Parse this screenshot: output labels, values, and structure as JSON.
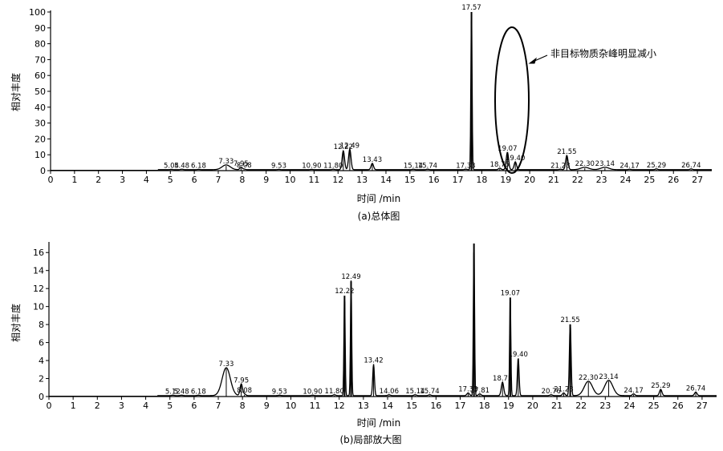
{
  "chart_data": [
    {
      "type": "line",
      "id": "overall",
      "caption": "(a)总体图",
      "xlabel": "时间 /min",
      "ylabel": "相对丰度",
      "xlim": [
        0,
        27.6
      ],
      "ylim": [
        0,
        100
      ],
      "xticks": [
        0,
        1,
        2,
        3,
        4,
        5,
        6,
        7,
        8,
        9,
        10,
        11,
        12,
        13,
        14,
        15,
        16,
        17,
        18,
        19,
        20,
        21,
        22,
        23,
        24,
        25,
        26,
        27
      ],
      "yticks": [
        0,
        10,
        20,
        30,
        40,
        50,
        60,
        70,
        80,
        90,
        100
      ],
      "annotation": "非目标物质杂峰明显减小",
      "peaks": [
        {
          "label": "5.04",
          "x": 5.04,
          "y": 0.2
        },
        {
          "label": "5.48",
          "x": 5.48,
          "y": 0.3
        },
        {
          "label": "6.18",
          "x": 6.18,
          "y": 0.2
        },
        {
          "label": "7.33",
          "x": 7.33,
          "y": 3
        },
        {
          "label": "7.95",
          "x": 7.95,
          "y": 1.5
        },
        {
          "label": "8.08",
          "x": 8.08,
          "y": 0.4
        },
        {
          "label": "9.53",
          "x": 9.53,
          "y": 0.2
        },
        {
          "label": "10.90",
          "x": 10.9,
          "y": 0.2
        },
        {
          "label": "11.80",
          "x": 11.8,
          "y": 0.3
        },
        {
          "label": "12.22",
          "x": 12.22,
          "y": 12
        },
        {
          "label": "12.49",
          "x": 12.49,
          "y": 13
        },
        {
          "label": "13.43",
          "x": 13.43,
          "y": 4
        },
        {
          "label": "15.14",
          "x": 15.14,
          "y": 0.3
        },
        {
          "label": "15.74",
          "x": 15.74,
          "y": 0.3
        },
        {
          "label": "17.33",
          "x": 17.33,
          "y": 0.3
        },
        {
          "label": "17.57",
          "x": 17.57,
          "y": 100
        },
        {
          "label": "18.75",
          "x": 18.75,
          "y": 1
        },
        {
          "label": "19.07",
          "x": 19.07,
          "y": 11
        },
        {
          "label": "19.40",
          "x": 19.4,
          "y": 5
        },
        {
          "label": "21.28",
          "x": 21.28,
          "y": 0.3
        },
        {
          "label": "21.55",
          "x": 21.55,
          "y": 9
        },
        {
          "label": "22.30",
          "x": 22.3,
          "y": 1.5
        },
        {
          "label": "23.14",
          "x": 23.14,
          "y": 1.5
        },
        {
          "label": "24.17",
          "x": 24.17,
          "y": 0.3
        },
        {
          "label": "25.29",
          "x": 25.29,
          "y": 0.5
        },
        {
          "label": "26.74",
          "x": 26.74,
          "y": 0.5
        }
      ]
    },
    {
      "type": "line",
      "id": "zoom",
      "caption": "(b)局部放大图",
      "xlabel": "时间 /min",
      "ylabel": "相对丰度",
      "xlim": [
        0,
        27.6
      ],
      "ylim": [
        0,
        17
      ],
      "xticks": [
        0,
        1,
        2,
        3,
        4,
        5,
        6,
        7,
        8,
        9,
        10,
        11,
        12,
        13,
        14,
        15,
        16,
        17,
        18,
        19,
        20,
        21,
        22,
        23,
        24,
        25,
        26,
        27
      ],
      "yticks": [
        0,
        2,
        4,
        6,
        8,
        10,
        12,
        14,
        16
      ],
      "peaks": [
        {
          "label": "5.12",
          "x": 5.12,
          "y": 0.05
        },
        {
          "label": "5.48",
          "x": 5.48,
          "y": 0.05
        },
        {
          "label": "6.18",
          "x": 6.18,
          "y": 0.05
        },
        {
          "label": "7.33",
          "x": 7.33,
          "y": 3.1
        },
        {
          "label": "7.95",
          "x": 7.95,
          "y": 1.3
        },
        {
          "label": "8.08",
          "x": 8.08,
          "y": 0.2
        },
        {
          "label": "9.53",
          "x": 9.53,
          "y": 0.05
        },
        {
          "label": "10.90",
          "x": 10.9,
          "y": 0.05
        },
        {
          "label": "11.80",
          "x": 11.8,
          "y": 0.1
        },
        {
          "label": "12.22",
          "x": 12.22,
          "y": 11.2
        },
        {
          "label": "12.49",
          "x": 12.49,
          "y": 12.8
        },
        {
          "label": "13.42",
          "x": 13.42,
          "y": 3.5
        },
        {
          "label": "14.06",
          "x": 14.06,
          "y": 0.1
        },
        {
          "label": "15.14",
          "x": 15.14,
          "y": 0.1
        },
        {
          "label": "15.74",
          "x": 15.74,
          "y": 0.1
        },
        {
          "label": "17.33",
          "x": 17.33,
          "y": 0.3
        },
        {
          "label": "",
          "x": 17.57,
          "y": 17
        },
        {
          "label": "17.81",
          "x": 17.81,
          "y": 0.2
        },
        {
          "label": "18.75",
          "x": 18.75,
          "y": 1.5
        },
        {
          "label": "19.07",
          "x": 19.07,
          "y": 11
        },
        {
          "label": "19.40",
          "x": 19.4,
          "y": 4.2
        },
        {
          "label": "20.76",
          "x": 20.76,
          "y": 0.1
        },
        {
          "label": "21.28",
          "x": 21.28,
          "y": 0.3
        },
        {
          "label": "21.55",
          "x": 21.55,
          "y": 8
        },
        {
          "label": "22.30",
          "x": 22.3,
          "y": 1.6
        },
        {
          "label": "23.14",
          "x": 23.14,
          "y": 1.7
        },
        {
          "label": "24.17",
          "x": 24.17,
          "y": 0.2
        },
        {
          "label": "25.29",
          "x": 25.29,
          "y": 0.7
        },
        {
          "label": "26.74",
          "x": 26.74,
          "y": 0.4
        }
      ]
    }
  ]
}
